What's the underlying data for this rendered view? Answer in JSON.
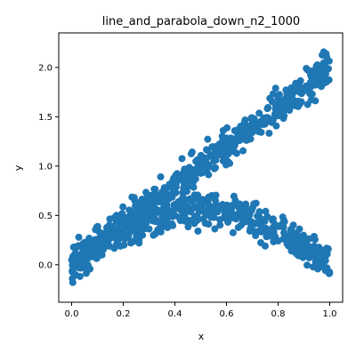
{
  "chart_data": {
    "type": "scatter",
    "title": "line_and_parabola_down_n2_1000",
    "xlabel": "x",
    "ylabel": "y",
    "xlim": [
      -0.05,
      1.05
    ],
    "ylim": [
      -0.38,
      2.35
    ],
    "xticks": [
      0.0,
      0.2,
      0.4,
      0.6,
      0.8,
      1.0
    ],
    "xtick_labels": [
      "0.0",
      "0.2",
      "0.4",
      "0.6",
      "0.8",
      "1.0"
    ],
    "yticks": [
      0.0,
      0.5,
      1.0,
      1.5,
      2.0
    ],
    "ytick_labels": [
      "0.0",
      "0.5",
      "1.0",
      "1.5",
      "2.0"
    ],
    "grid": false,
    "legend": "none",
    "marker_color": "#1f77b4",
    "series": [
      {
        "description_points": 1000,
        "components": [
          {
            "kind": "line",
            "slope": 2.0,
            "intercept": 0.0,
            "noise": 0.18
          },
          {
            "kind": "parabola_down",
            "peak_x": 0.5,
            "peak_y": 0.55,
            "curvature": 2.2,
            "noise": 0.18
          }
        ],
        "x": [
          0.0,
          0.05,
          0.1,
          0.15,
          0.2,
          0.25,
          0.3,
          0.35,
          0.4,
          0.45,
          0.5,
          0.55,
          0.6,
          0.65,
          0.7,
          0.75,
          0.8,
          0.85,
          0.9,
          0.95,
          1.0
        ],
        "y_line": [
          0.0,
          0.1,
          0.2,
          0.3,
          0.4,
          0.5,
          0.6,
          0.7,
          0.8,
          0.9,
          1.0,
          1.1,
          1.2,
          1.3,
          1.4,
          1.5,
          1.6,
          1.7,
          1.8,
          1.9,
          2.0
        ],
        "y_parabola": [
          0.0,
          0.11,
          0.2,
          0.28,
          0.35,
          0.41,
          0.46,
          0.5,
          0.53,
          0.55,
          0.55,
          0.55,
          0.53,
          0.5,
          0.46,
          0.41,
          0.35,
          0.28,
          0.2,
          0.11,
          0.0
        ]
      }
    ]
  }
}
